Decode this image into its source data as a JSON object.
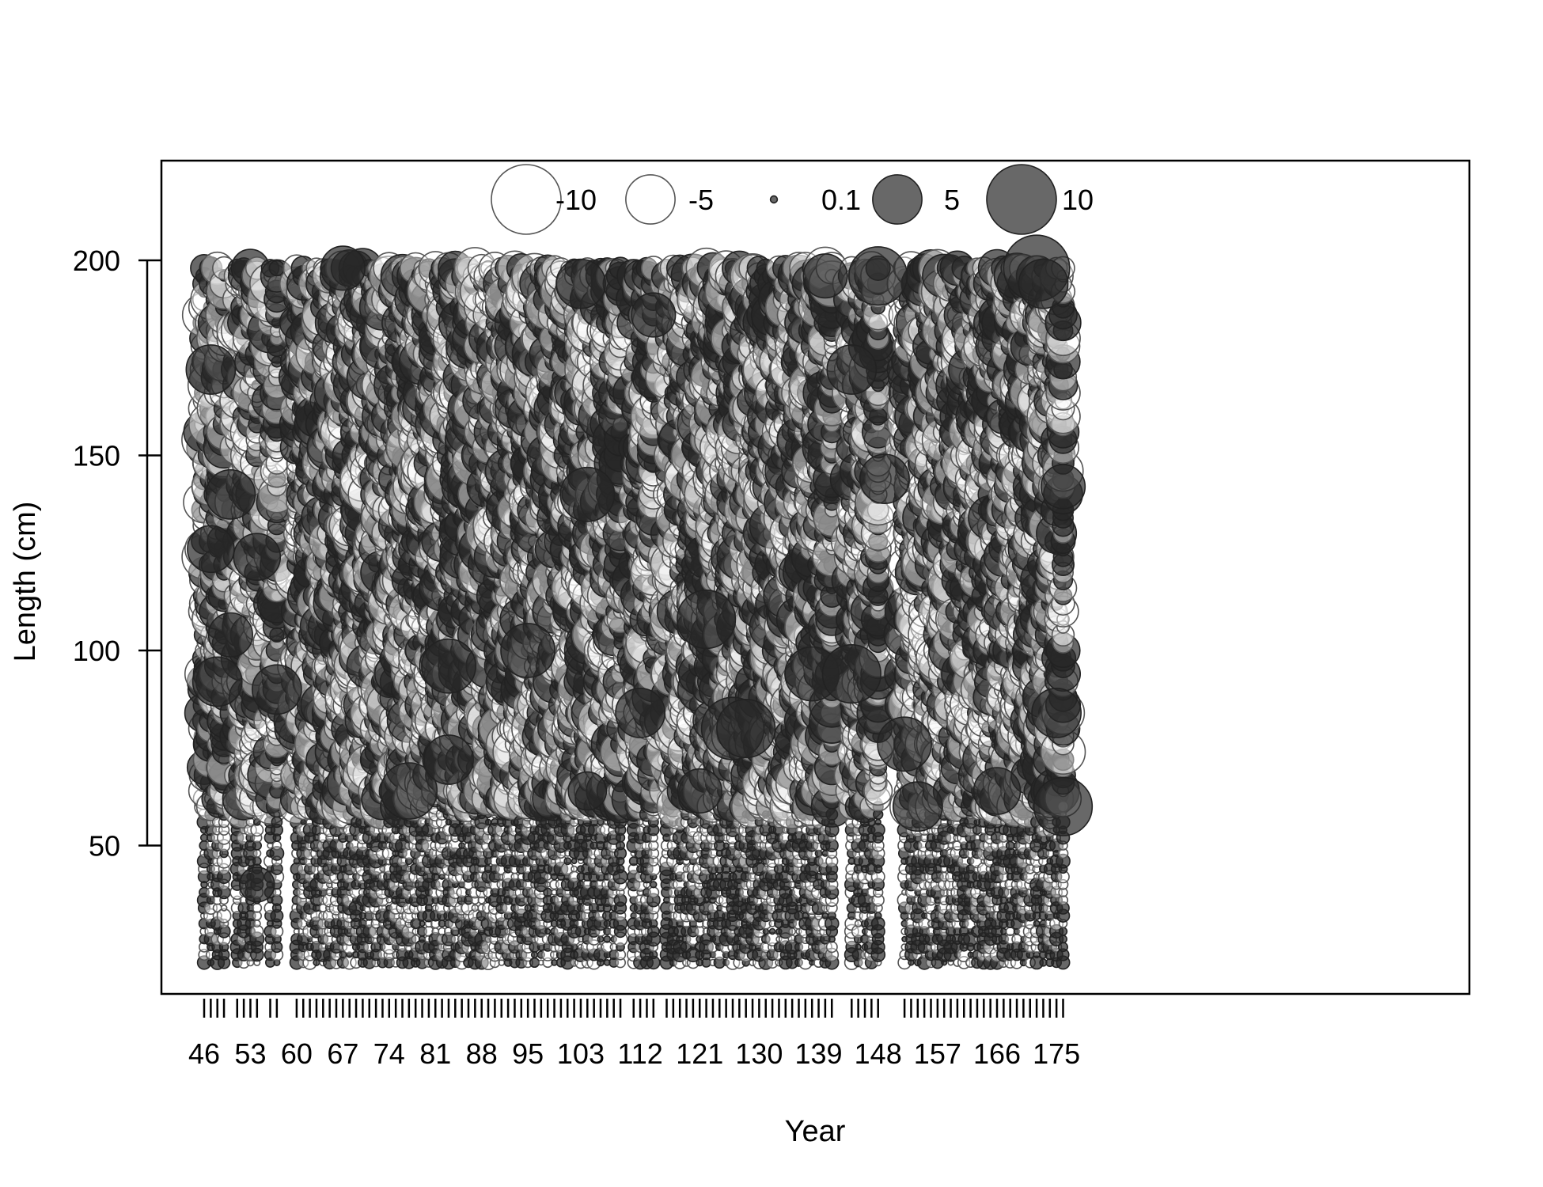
{
  "chart_data": {
    "type": "scatter",
    "subtype": "bubble",
    "title": "",
    "xlabel": "Year",
    "ylabel": "Length (cm)",
    "ylim": [
      20,
      225
    ],
    "yticks": [
      50,
      100,
      150,
      200
    ],
    "xlim": [
      46,
      176
    ],
    "xticks": [
      46,
      53,
      60,
      67,
      74,
      81,
      88,
      95,
      103,
      112,
      121,
      130,
      139,
      148,
      157,
      166,
      175
    ],
    "length_bins": {
      "min": 20,
      "max": 198,
      "step": 2
    },
    "year_groups": [
      [
        46,
        49
      ],
      [
        51,
        54
      ],
      [
        56,
        57
      ],
      [
        60,
        109
      ],
      [
        111,
        114
      ],
      [
        116,
        141
      ],
      [
        144,
        148
      ],
      [
        152,
        176
      ]
    ],
    "legend": {
      "position": "top-center",
      "entries": [
        {
          "label": "-10",
          "value": -10
        },
        {
          "label": "-5",
          "value": -5
        },
        {
          "label": "0.1",
          "value": 0.1
        },
        {
          "label": "5",
          "value": 5
        },
        {
          "label": "10",
          "value": 10
        }
      ]
    },
    "colors": {
      "positive": "#3a3a3a",
      "negative": "#ffffff",
      "outline": "#333333"
    },
    "notable_positive": [
      {
        "year": 47,
        "length": 172,
        "value": 5
      },
      {
        "year": 47,
        "length": 126,
        "value": 4.5
      },
      {
        "year": 48,
        "length": 92,
        "value": 5
      },
      {
        "year": 50,
        "length": 140,
        "value": 5
      },
      {
        "year": 50,
        "length": 104,
        "value": 4
      },
      {
        "year": 54,
        "length": 124,
        "value": 4.5
      },
      {
        "year": 54,
        "length": 40,
        "value": 2.5
      },
      {
        "year": 57,
        "length": 90,
        "value": 5
      },
      {
        "year": 67,
        "length": 198,
        "value": 4
      },
      {
        "year": 77,
        "length": 64,
        "value": 6.5
      },
      {
        "year": 83,
        "length": 96,
        "value": 6
      },
      {
        "year": 83,
        "length": 72,
        "value": 5
      },
      {
        "year": 95,
        "length": 100,
        "value": 6
      },
      {
        "year": 103,
        "length": 194,
        "value": 5
      },
      {
        "year": 104,
        "length": 140,
        "value": 6
      },
      {
        "year": 104,
        "length": 64,
        "value": 3
      },
      {
        "year": 112,
        "length": 84,
        "value": 5
      },
      {
        "year": 114,
        "length": 186,
        "value": 4
      },
      {
        "year": 121,
        "length": 64,
        "value": 4
      },
      {
        "year": 122,
        "length": 108,
        "value": 7
      },
      {
        "year": 126,
        "length": 80,
        "value": 8
      },
      {
        "year": 128,
        "length": 80,
        "value": 7
      },
      {
        "year": 138,
        "length": 94,
        "value": 6
      },
      {
        "year": 140,
        "length": 196,
        "value": 4
      },
      {
        "year": 144,
        "length": 94,
        "value": 7
      },
      {
        "year": 144,
        "length": 172,
        "value": 5
      },
      {
        "year": 148,
        "length": 196,
        "value": 7
      },
      {
        "year": 149,
        "length": 144,
        "value": 5
      },
      {
        "year": 152,
        "length": 76,
        "value": 6
      },
      {
        "year": 154,
        "length": 60,
        "value": 5
      },
      {
        "year": 166,
        "length": 64,
        "value": 4.5
      },
      {
        "year": 172,
        "length": 198,
        "value": 9
      },
      {
        "year": 173,
        "length": 194,
        "value": 5
      },
      {
        "year": 175,
        "length": 84,
        "value": 5
      },
      {
        "year": 176,
        "length": 60,
        "value": 7
      },
      {
        "year": 176,
        "length": 142,
        "value": 4
      }
    ]
  }
}
